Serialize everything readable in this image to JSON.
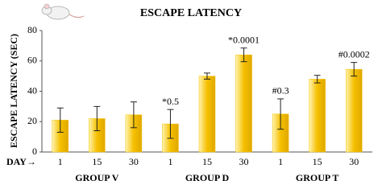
{
  "chart_data": {
    "type": "bar",
    "title": "ESCAPE LATENCY",
    "y_label": "ESCAPE LATENCY (SEC)",
    "x_label": "DAY→",
    "categories": [
      "1",
      "15",
      "30",
      "1",
      "15",
      "30",
      "1",
      "15",
      "30"
    ],
    "groups": [
      "GROUP V",
      "GROUP D",
      "GROUP T"
    ],
    "values": [
      21,
      22,
      24.5,
      18.5,
      50,
      64,
      25,
      48,
      54.5
    ],
    "errors": [
      8,
      8,
      8.5,
      9.5,
      2,
      4.5,
      10,
      2.5,
      4.5
    ],
    "bar_labels": [
      null,
      null,
      null,
      "*0.5",
      null,
      "*0.0001",
      "#0.3",
      null,
      "#0.0002"
    ],
    "color": "#f5c000",
    "ylim": [
      0,
      80
    ],
    "yticks": [
      0,
      20,
      40,
      60,
      80
    ],
    "grid": false
  }
}
